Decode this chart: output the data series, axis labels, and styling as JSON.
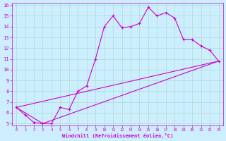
{
  "xlabel": "Windchill (Refroidissement éolien,°C)",
  "bg_color": "#cceeff",
  "grid_color": "#aaddcc",
  "line_color": "#cc00cc",
  "xlim": [
    -0.5,
    23.5
  ],
  "ylim": [
    4.8,
    16.2
  ],
  "xticks": [
    0,
    1,
    2,
    3,
    4,
    5,
    6,
    7,
    8,
    9,
    10,
    11,
    12,
    13,
    14,
    15,
    16,
    17,
    18,
    19,
    20,
    21,
    22,
    23
  ],
  "yticks": [
    5,
    6,
    7,
    8,
    9,
    10,
    11,
    12,
    13,
    14,
    15,
    16
  ],
  "line1_x": [
    0,
    1,
    2,
    3,
    4,
    5,
    6,
    7,
    8,
    9,
    10,
    11,
    12,
    13,
    14,
    15,
    16,
    17,
    18,
    19,
    20,
    21,
    22,
    23
  ],
  "line1_y": [
    6.5,
    5.8,
    5.1,
    5.0,
    5.0,
    6.5,
    6.3,
    8.0,
    8.5,
    11.0,
    14.0,
    15.0,
    13.9,
    14.0,
    14.3,
    15.8,
    15.0,
    15.3,
    14.8,
    12.8,
    12.8,
    12.2,
    11.8,
    10.8
  ],
  "line2_x": [
    0,
    23
  ],
  "line2_y": [
    6.5,
    10.8
  ],
  "line3_x": [
    0,
    3,
    23
  ],
  "line3_y": [
    6.5,
    5.0,
    10.8
  ],
  "marker": "+"
}
